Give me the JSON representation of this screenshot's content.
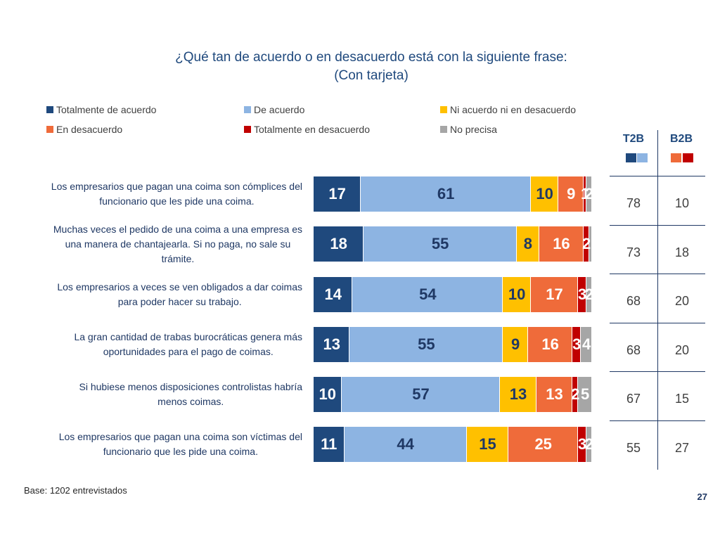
{
  "chart_data": {
    "type": "bar",
    "orientation": "horizontal",
    "stacked": true,
    "title": "¿Qué tan de acuerdo o en desacuerdo está con la siguiente frase:",
    "subtitle": "(Con tarjeta)",
    "xlabel": "",
    "ylabel": "",
    "xlim": [
      0,
      100
    ],
    "grid": false,
    "legend_position": "top",
    "categories": [
      "Los empresarios que pagan una coima son cómplices del\nfuncionario que les pide una coima.",
      "Muchas veces el pedido de una coima a una empresa es\nuna manera de chantajearla. Si no paga, no sale su\ntrámite.",
      "Los empresarios a veces se ven obligados a dar coimas\npara poder hacer su trabajo.",
      "La gran cantidad de trabas burocráticas genera más\noportunidades para el pago de coimas.",
      "Si hubiese menos disposiciones controlistas habría\nmenos coimas.",
      "Los empresarios que pagan una coima son víctimas del\nfuncionario que les pide una coima."
    ],
    "series": [
      {
        "name": "Totalmente de acuerdo",
        "color": "#1F497D",
        "label_color": "#FFFFFF",
        "values": [
          17,
          18,
          14,
          13,
          10,
          11
        ]
      },
      {
        "name": "De acuerdo",
        "color": "#8DB4E2",
        "label_color": "#1F3864",
        "values": [
          61,
          55,
          54,
          55,
          57,
          44
        ]
      },
      {
        "name": "Ni acuerdo ni en desacuerdo",
        "color": "#FFC000",
        "label_color": "#1F3864",
        "values": [
          10,
          8,
          10,
          9,
          13,
          15
        ]
      },
      {
        "name": "En desacuerdo",
        "color": "#EF6B3A",
        "label_color": "#FFFFFF",
        "values": [
          9,
          16,
          17,
          16,
          13,
          25
        ]
      },
      {
        "name": "Totalmente en desacuerdo",
        "color": "#C00000",
        "label_color": "#FFFFFF",
        "values": [
          1,
          2,
          3,
          3,
          2,
          3
        ]
      },
      {
        "name": "No precisa",
        "color": "#A6A6A6",
        "label_color": "#FFFFFF",
        "values": [
          2,
          1,
          2,
          4,
          5,
          2
        ],
        "label_hidden": [
          false,
          true,
          false,
          false,
          false,
          false
        ]
      }
    ]
  },
  "summary": {
    "columns": [
      {
        "label": "T2B",
        "swatches": [
          "#1F497D",
          "#8DB4E2"
        ]
      },
      {
        "label": "B2B",
        "swatches": [
          "#EF6B3A",
          "#C00000"
        ]
      }
    ],
    "rows": [
      [
        78,
        10
      ],
      [
        73,
        18
      ],
      [
        68,
        20
      ],
      [
        68,
        20
      ],
      [
        67,
        15
      ],
      [
        55,
        27
      ]
    ]
  },
  "footer": {
    "base": "Base: 1202 entrevistados",
    "page_number": "27"
  }
}
